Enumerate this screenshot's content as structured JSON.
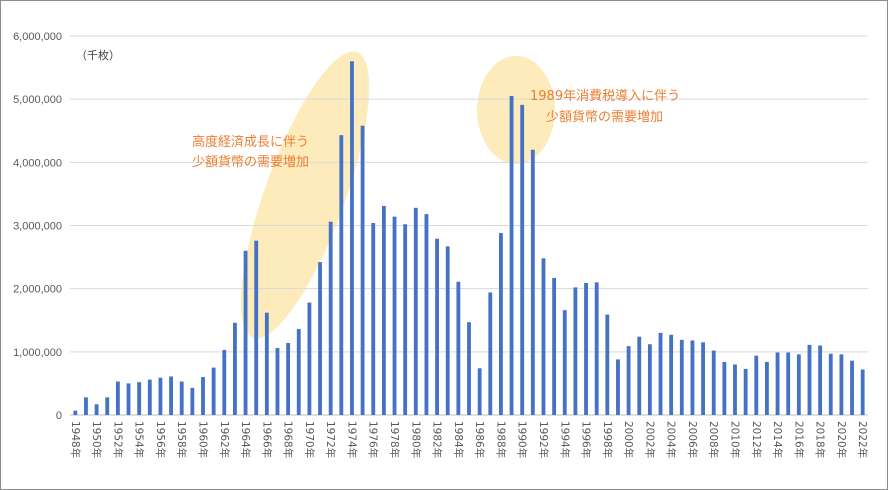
{
  "chart_data": {
    "type": "bar",
    "unit_label": "（千枚）",
    "ylim": [
      0,
      6000000
    ],
    "yticks": [
      "0",
      "1,000,000",
      "2,000,000",
      "3,000,000",
      "4,000,000",
      "5,000,000",
      "6,000,000"
    ],
    "ytick_values": [
      0,
      1000000,
      2000000,
      3000000,
      4000000,
      5000000,
      6000000
    ],
    "grid": true,
    "bar_color": "#4472c4",
    "categories": [
      "1948年",
      "1949年",
      "1950年",
      "1951年",
      "1952年",
      "1953年",
      "1954年",
      "1955年",
      "1956年",
      "1957年",
      "1958年",
      "1959年",
      "1960年",
      "1961年",
      "1962年",
      "1963年",
      "1964年",
      "1965年",
      "1966年",
      "1967年",
      "1968年",
      "1969年",
      "1970年",
      "1971年",
      "1972年",
      "1973年",
      "1974年",
      "1975年",
      "1976年",
      "1977年",
      "1978年",
      "1979年",
      "1980年",
      "1981年",
      "1982年",
      "1983年",
      "1984年",
      "1985年",
      "1986年",
      "1987年",
      "1988年",
      "1989年",
      "1990年",
      "1991年",
      "1992年",
      "1993年",
      "1994年",
      "1995年",
      "1996年",
      "1997年",
      "1998年",
      "1999年",
      "2000年",
      "2001年",
      "2002年",
      "2003年",
      "2004年",
      "2005年",
      "2006年",
      "2007年",
      "2008年",
      "2009年",
      "2010年",
      "2011年",
      "2012年",
      "2013年",
      "2014年",
      "2015年",
      "2016年",
      "2017年",
      "2018年",
      "2019年",
      "2020年",
      "2021年",
      "2022年"
    ],
    "values": [
      70000,
      280000,
      170000,
      280000,
      530000,
      500000,
      520000,
      560000,
      590000,
      610000,
      530000,
      430000,
      600000,
      750000,
      1030000,
      1460000,
      2600000,
      2760000,
      1620000,
      1060000,
      1140000,
      1360000,
      1780000,
      2420000,
      3060000,
      4430000,
      5600000,
      4580000,
      3040000,
      3310000,
      3140000,
      3020000,
      3280000,
      3180000,
      2790000,
      2670000,
      2110000,
      1470000,
      740000,
      1940000,
      2880000,
      5050000,
      4910000,
      4200000,
      2480000,
      2170000,
      1660000,
      2020000,
      2090000,
      2100000,
      1590000,
      880000,
      1090000,
      1240000,
      1120000,
      1300000,
      1270000,
      1190000,
      1180000,
      1150000,
      1020000,
      840000,
      800000,
      730000,
      940000,
      840000,
      990000,
      990000,
      960000,
      1110000,
      1100000,
      970000,
      960000,
      860000,
      720000
    ],
    "annotations": [
      {
        "line1": "高度経済成長に伴う",
        "line2": "少額貨幣の需要増加",
        "highlight_color": "#fde9b5"
      },
      {
        "line1": "1989年消費税導入に伴う",
        "line2": "少額貨幣の需要増加",
        "highlight_color": "#fde9b5"
      }
    ]
  }
}
